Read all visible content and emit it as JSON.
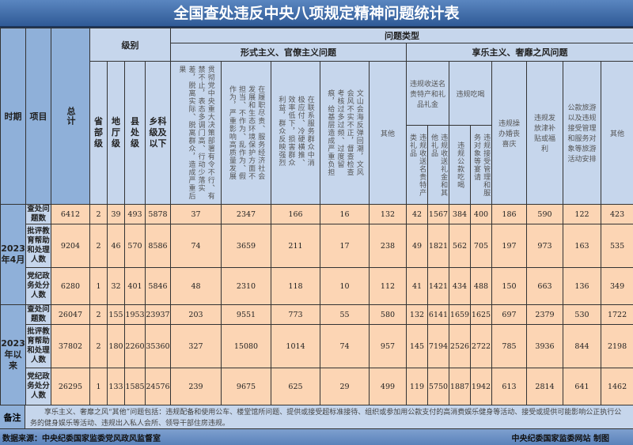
{
  "title": "全国查处违反中央八项规定精神问题统计表",
  "header": {
    "period": "时期",
    "item": "项目",
    "total": "总计",
    "level": "级别",
    "problem_type": "问题类型",
    "levels": [
      "省部级",
      "地厅级",
      "县处级",
      "乡科级及以下"
    ],
    "formalism": {
      "label": "形式主义、官僚主义问题",
      "cols": [
        "贯彻党中央重大决策部署有令不行、有禁不止，表态多调门高、行动少落实差，脱离实际、脱离群众，造成严重后果",
        "在履职尽责、服务经济社会发展和生态环境保护方面不担当、不作为、乱作为、假作为，严重影响高质量发展",
        "在联系服务群众中消极应付、冷硬横推、效率低下，损害群众利益，群众反映强烈",
        "文山会海反弹回潮，文风会风不实不正，督查检查考核过多过频、过度留痕，给基层造成严重负担",
        "其他"
      ]
    },
    "hedonism": {
      "label": "享乐主义、奢靡之风问题",
      "gifts": {
        "label": "违规收送名贵特产和礼品礼金",
        "cols": [
          "违规收送名贵特产类礼品",
          "违规收送礼金和其他礼品"
        ]
      },
      "dining": {
        "label": "违规吃喝",
        "cols": [
          "违规公款吃喝",
          "违规接受管理和服务对象等宴请"
        ]
      },
      "others": [
        "违规操办婚丧喜庆",
        "违规发放津补贴或福利",
        "公款旅游以及违规接受管理和服务对象等旅游活动安排",
        "其他"
      ]
    }
  },
  "groups": [
    {
      "period": "2023年4月",
      "rows": [
        {
          "item": "查处问题数",
          "values": [
            "6412",
            "2",
            "39",
            "493",
            "5878",
            "37",
            "2347",
            "166",
            "16",
            "132",
            "42",
            "1567",
            "384",
            "400",
            "186",
            "590",
            "122",
            "423"
          ]
        },
        {
          "item": "批评教育帮助和处理人数",
          "values": [
            "9204",
            "2",
            "46",
            "570",
            "8586",
            "74",
            "3659",
            "211",
            "17",
            "238",
            "49",
            "1821",
            "562",
            "705",
            "197",
            "973",
            "163",
            "535"
          ]
        },
        {
          "item": "党纪政务处分人数",
          "values": [
            "6280",
            "1",
            "32",
            "401",
            "5846",
            "48",
            "2310",
            "118",
            "10",
            "112",
            "41",
            "1421",
            "434",
            "488",
            "150",
            "663",
            "136",
            "349"
          ]
        }
      ]
    },
    {
      "period": "2023年以来",
      "rows": [
        {
          "item": "查处问题数",
          "values": [
            "26047",
            "2",
            "155",
            "1953",
            "23937",
            "203",
            "9551",
            "773",
            "55",
            "580",
            "132",
            "6141",
            "1659",
            "1625",
            "697",
            "2379",
            "530",
            "1722"
          ]
        },
        {
          "item": "批评教育帮助和处理人数",
          "values": [
            "37802",
            "2",
            "180",
            "2260",
            "35360",
            "327",
            "15080",
            "1014",
            "74",
            "957",
            "145",
            "7194",
            "2526",
            "2722",
            "785",
            "3936",
            "844",
            "2198"
          ]
        },
        {
          "item": "党纪政务处分人数",
          "values": [
            "26295",
            "1",
            "133",
            "1585",
            "24576",
            "239",
            "9675",
            "625",
            "29",
            "499",
            "119",
            "5750",
            "1887",
            "1942",
            "613",
            "2814",
            "641",
            "1462"
          ]
        }
      ]
    }
  ],
  "note": {
    "label": "备注",
    "text": "享乐主义、奢靡之风“其他”问题包括：违规配备和使用公车、楼堂馆所问题、提供或接受超标准接待、组织或参加用公款支付的高消费娱乐健身等活动、接受或提供可能影响公正执行公务的健身娱乐等活动、违规出入私人会所、领导干部住房违规。"
  },
  "footer": {
    "source": "数据来源：中央纪委国家监委党风政风监督室",
    "credit": "中央纪委国家监委网站 制图"
  }
}
